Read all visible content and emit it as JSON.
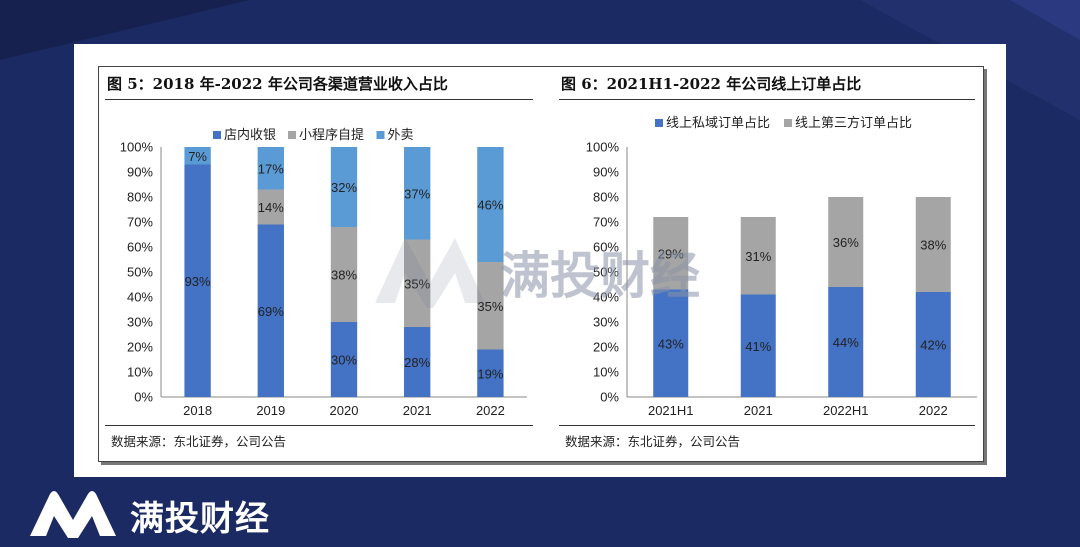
{
  "brand": {
    "name": "满投财经",
    "logo_icon": "brand-m-logo-icon"
  },
  "watermark": {
    "text": "满投财经",
    "icon": "watermark-m-logo-icon"
  },
  "figures": [
    {
      "title": "图 5：2018 年-2022 年公司各渠道营业收入占比",
      "source": "数据来源：东北证券，公司公告"
    },
    {
      "title": "图 6：2021H1-2022 年公司线上订单占比",
      "source": "数据来源：东北证券，公司公告"
    }
  ],
  "chart_data": [
    {
      "type": "bar",
      "stacked": true,
      "categories": [
        "2018",
        "2019",
        "2020",
        "2021",
        "2022"
      ],
      "series": [
        {
          "name": "店内收银",
          "color": "#4472c4",
          "values": [
            93,
            69,
            30,
            28,
            19
          ],
          "labels": [
            "93%",
            "69%",
            "30%",
            "28%",
            "19%"
          ]
        },
        {
          "name": "小程序自提",
          "color": "#a5a5a5",
          "values": [
            0,
            14,
            38,
            35,
            35
          ],
          "labels": [
            "",
            "14%",
            "38%",
            "35%",
            "35%"
          ]
        },
        {
          "name": "外卖",
          "color": "#5b9bd5",
          "values": [
            7,
            17,
            32,
            37,
            46
          ],
          "labels": [
            "7%",
            "17%",
            "32%",
            "37%",
            "46%"
          ]
        }
      ],
      "ylim": [
        0,
        100
      ],
      "yticks": [
        "0%",
        "10%",
        "20%",
        "30%",
        "40%",
        "50%",
        "60%",
        "70%",
        "80%",
        "90%",
        "100%"
      ],
      "legend": "top",
      "grid": false
    },
    {
      "type": "bar",
      "stacked": true,
      "categories": [
        "2021H1",
        "2021",
        "2022H1",
        "2022"
      ],
      "series": [
        {
          "name": "线上私域订单占比",
          "color": "#4472c4",
          "values": [
            43,
            41,
            44,
            42
          ],
          "labels": [
            "43%",
            "41%",
            "44%",
            "42%"
          ]
        },
        {
          "name": "线上第三方订单占比",
          "color": "#a5a5a5",
          "values": [
            29,
            31,
            36,
            38
          ],
          "labels": [
            "29%",
            "31%",
            "36%",
            "38%"
          ]
        }
      ],
      "ylim": [
        0,
        100
      ],
      "yticks": [
        "0%",
        "10%",
        "20%",
        "30%",
        "40%",
        "50%",
        "60%",
        "70%",
        "80%",
        "90%",
        "100%"
      ],
      "legend": "top",
      "grid": false
    }
  ]
}
